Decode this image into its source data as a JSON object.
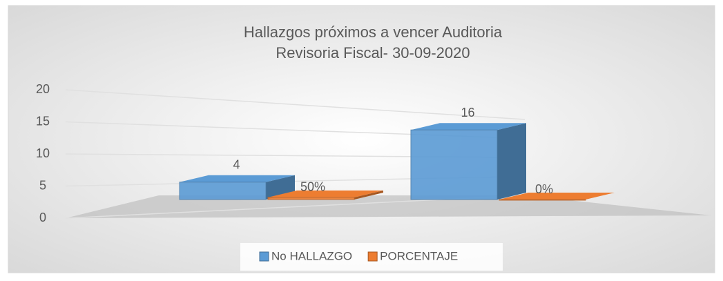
{
  "chart_data": {
    "type": "bar3d",
    "title": [
      "Hallazgos próximos a vencer Auditoria",
      "Revisoria Fiscal- 30-09-2020"
    ],
    "categories": [
      null,
      null
    ],
    "series": [
      {
        "name": "No HALLAZGO",
        "color": "#5b9bd5",
        "values": [
          4,
          16
        ]
      },
      {
        "name": "PORCENTAJE",
        "color": "#ed7d31",
        "values": [
          0.5,
          0
        ],
        "value_labels": [
          "50%",
          "0%"
        ]
      }
    ],
    "ylim": [
      0,
      20
    ],
    "yticks": [
      0,
      5,
      10,
      15,
      20
    ],
    "grid": true,
    "legend": "bottom"
  }
}
